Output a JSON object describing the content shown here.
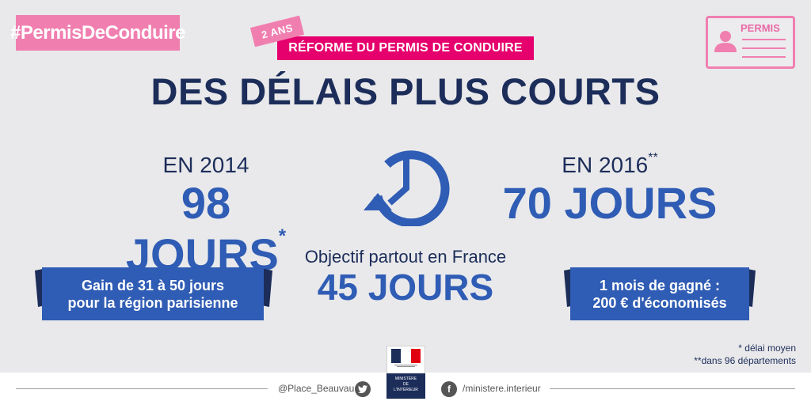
{
  "hashtag": "#PermisDeConduire",
  "badge": "2 ANS",
  "banner": "RÉFORME DU PERMIS DE CONDUIRE",
  "permis_card": {
    "label": "PERMIS"
  },
  "title": "DES DÉLAIS PLUS COURTS",
  "left": {
    "year": "EN 2014",
    "days": "98 JOURS",
    "mark": "*",
    "ribbon_line1": "Gain de 31 à 50 jours",
    "ribbon_line2": "pour la région parisienne"
  },
  "right": {
    "year": "EN 2016",
    "mark": "**",
    "days": "70 JOURS",
    "ribbon_line1": "1 mois de gagné :",
    "ribbon_line2": "200 € d'économisés"
  },
  "center": {
    "objective": "Objectif partout en France",
    "days": "45 JOURS",
    "icon": "clock-rewind-icon"
  },
  "notes": {
    "note1": "* délai moyen",
    "note2": "**dans 96 départements"
  },
  "footer": {
    "twitter_handle": "@Place_Beauvau",
    "facebook_page": "/ministere.interieur",
    "ministry_line1": "MINISTÈRE",
    "ministry_line2": "DE",
    "ministry_line3": "L'INTÉRIEUR"
  },
  "colors": {
    "pink": "#f07fb0",
    "magenta": "#e5006d",
    "navy": "#1c2d5a",
    "blue": "#2f5cb4",
    "background": "#e9e9eb"
  }
}
